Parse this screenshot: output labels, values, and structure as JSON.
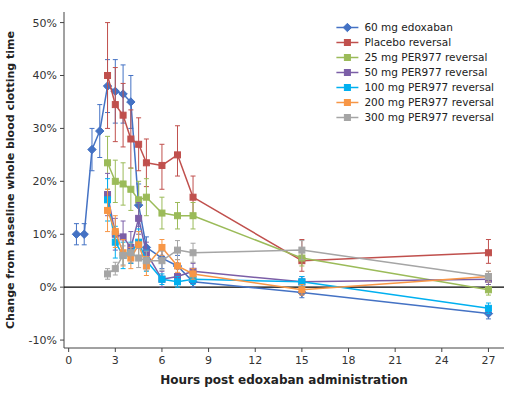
{
  "chart_data": {
    "type": "line",
    "xlabel": "Hours post edoxaban administration",
    "ylabel": "Change from baseline whole blood clotting time",
    "xlim": [
      -0.3,
      28
    ],
    "ylim": [
      -0.115,
      0.52
    ],
    "xticks": [
      0,
      3,
      6,
      9,
      12,
      15,
      18,
      21,
      24,
      27
    ],
    "yticks": [
      {
        "value": -0.1,
        "label": "-10%"
      },
      {
        "value": 0.0,
        "label": "0%"
      },
      {
        "value": 0.1,
        "label": "10%"
      },
      {
        "value": 0.2,
        "label": "20%"
      },
      {
        "value": 0.3,
        "label": "30%"
      },
      {
        "value": 0.4,
        "label": "40%"
      },
      {
        "value": 0.5,
        "label": "50%"
      }
    ],
    "grid": false,
    "legend": "upper right",
    "series": [
      {
        "name": "60 mg edoxaban",
        "color": "#4472C4",
        "marker": "diamond",
        "x": [
          0.5,
          1,
          1.5,
          2,
          2.5,
          3,
          3.5,
          4,
          4.5,
          5,
          6,
          7,
          8,
          15,
          27
        ],
        "values": [
          0.1,
          0.1,
          0.26,
          0.295,
          0.38,
          0.37,
          0.365,
          0.35,
          0.155,
          0.075,
          0.055,
          0.04,
          0.01,
          -0.01,
          -0.05
        ],
        "yerr_lo": [
          0.02,
          0.02,
          0.04,
          0.05,
          0.05,
          0.06,
          0.055,
          0.05,
          0.04,
          0.02,
          0.02,
          0.02,
          0.01,
          0.01,
          0.01
        ],
        "yerr_hi": [
          0.02,
          0.02,
          0.04,
          0.05,
          0.05,
          0.06,
          0.055,
          0.05,
          0.04,
          0.02,
          0.02,
          0.02,
          0.01,
          0.01,
          0.01
        ]
      },
      {
        "name": "Placebo reversal",
        "color": "#C0504D",
        "marker": "square",
        "x": [
          2.5,
          3,
          3.5,
          4,
          4.5,
          5,
          6,
          7,
          8,
          15,
          27
        ],
        "values": [
          0.4,
          0.345,
          0.325,
          0.28,
          0.27,
          0.235,
          0.23,
          0.25,
          0.17,
          0.05,
          0.065
        ],
        "yerr_lo": [
          0.1,
          0.07,
          0.06,
          0.055,
          0.05,
          0.045,
          0.045,
          0.04,
          0.04,
          0.02,
          0.02
        ],
        "yerr_hi": [
          0.1,
          0.07,
          0.06,
          0.055,
          0.05,
          0.045,
          0.04,
          0.055,
          0.04,
          0.04,
          0.025
        ]
      },
      {
        "name": "25 mg PER977 reversal",
        "color": "#9BBB59",
        "marker": "square",
        "x": [
          2.5,
          3,
          3.5,
          4,
          4.5,
          5,
          6,
          7,
          8,
          15,
          27
        ],
        "values": [
          0.235,
          0.2,
          0.195,
          0.185,
          0.165,
          0.17,
          0.14,
          0.135,
          0.135,
          0.055,
          -0.005
        ],
        "yerr_lo": [
          0.05,
          0.04,
          0.04,
          0.04,
          0.035,
          0.035,
          0.03,
          0.025,
          0.025,
          0.015,
          0.01
        ],
        "yerr_hi": [
          0.05,
          0.04,
          0.04,
          0.04,
          0.035,
          0.035,
          0.03,
          0.025,
          0.025,
          0.015,
          0.01
        ]
      },
      {
        "name": "50 mg PER977 reversal",
        "color": "#7B5EA7",
        "marker": "square",
        "x": [
          2.5,
          3,
          3.5,
          4,
          4.5,
          5,
          6,
          7,
          8,
          15,
          27
        ],
        "values": [
          0.175,
          0.1,
          0.095,
          0.075,
          0.13,
          0.065,
          0.015,
          0.02,
          0.03,
          0.01,
          0.015
        ],
        "yerr_lo": [
          0.04,
          0.03,
          0.03,
          0.03,
          0.03,
          0.02,
          0.015,
          0.015,
          0.015,
          0.01,
          0.01
        ],
        "yerr_hi": [
          0.04,
          0.03,
          0.03,
          0.03,
          0.03,
          0.02,
          0.015,
          0.015,
          0.015,
          0.01,
          0.01
        ]
      },
      {
        "name": "100 mg PER977 reversal",
        "color": "#00B0F0",
        "marker": "square",
        "x": [
          2.5,
          3,
          3.5,
          4,
          4.5,
          5,
          6,
          7,
          8,
          15,
          27
        ],
        "values": [
          0.165,
          0.085,
          0.06,
          0.065,
          0.085,
          0.05,
          0.015,
          0.01,
          0.015,
          0.01,
          -0.04
        ],
        "yerr_lo": [
          0.04,
          0.03,
          0.025,
          0.02,
          0.025,
          0.02,
          0.01,
          0.01,
          0.01,
          0.01,
          0.01
        ],
        "yerr_hi": [
          0.04,
          0.03,
          0.025,
          0.02,
          0.025,
          0.02,
          0.01,
          0.01,
          0.01,
          0.01,
          0.01
        ]
      },
      {
        "name": "200 mg PER977 reversal",
        "color": "#F79646",
        "marker": "square",
        "x": [
          2.5,
          3,
          3.5,
          4,
          4.5,
          5,
          6,
          7,
          8,
          15,
          27
        ],
        "values": [
          0.145,
          0.105,
          0.065,
          0.055,
          0.08,
          0.04,
          0.075,
          0.04,
          0.025,
          -0.005,
          0.02
        ],
        "yerr_lo": [
          0.04,
          0.03,
          0.025,
          0.02,
          0.025,
          0.018,
          0.015,
          0.012,
          0.01,
          0.01,
          0.01
        ],
        "yerr_hi": [
          0.04,
          0.03,
          0.025,
          0.02,
          0.025,
          0.018,
          0.015,
          0.012,
          0.01,
          0.01,
          0.01
        ]
      },
      {
        "name": "300 mg PER977 reversal",
        "color": "#A5A5A5",
        "marker": "square",
        "x": [
          2.5,
          3,
          3.5,
          4,
          4.5,
          5,
          6,
          7,
          8,
          15,
          27
        ],
        "values": [
          0.025,
          0.035,
          0.06,
          0.065,
          0.055,
          0.05,
          0.05,
          0.07,
          0.065,
          0.07,
          0.02
        ],
        "yerr_lo": [
          0.01,
          0.012,
          0.018,
          0.018,
          0.018,
          0.018,
          0.018,
          0.018,
          0.018,
          0.018,
          0.01
        ],
        "yerr_hi": [
          0.01,
          0.012,
          0.018,
          0.018,
          0.018,
          0.018,
          0.018,
          0.018,
          0.018,
          0.018,
          0.01
        ]
      }
    ]
  }
}
